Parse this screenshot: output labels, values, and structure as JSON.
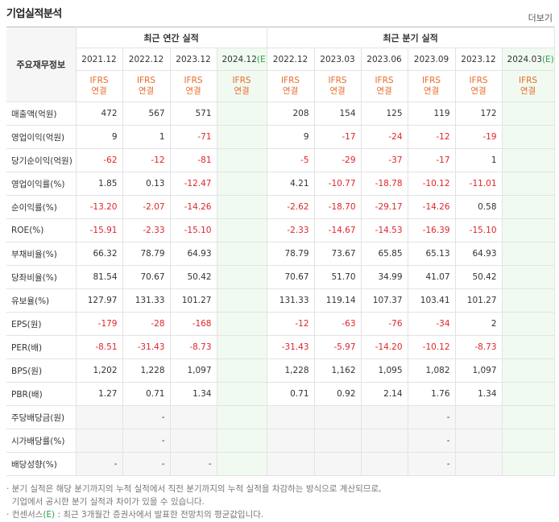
{
  "title": "기업실적분석",
  "more": "더보기",
  "headers": {
    "row_label": "주요재무정보",
    "annual_group": "최근 연간 실적",
    "quarter_group": "최근 분기 실적",
    "annual_periods": [
      "2021.12",
      "2022.12",
      "2023.12",
      "2024.12"
    ],
    "annual_est_suffix": "(E)",
    "quarter_periods": [
      "2022.12",
      "2023.03",
      "2023.06",
      "2023.09",
      "2023.12",
      "2024.03"
    ],
    "quarter_est_suffix": "(E)",
    "ifrs": "IFRS",
    "consolidated": "연결"
  },
  "rows": [
    {
      "label": "매출액(억원)",
      "values": [
        "472",
        "567",
        "571",
        "",
        "208",
        "154",
        "125",
        "119",
        "172",
        ""
      ]
    },
    {
      "label": "영업이익(억원)",
      "values": [
        "9",
        "1",
        "-71",
        "",
        "9",
        "-17",
        "-24",
        "-12",
        "-19",
        ""
      ]
    },
    {
      "label": "당기순이익(억원)",
      "values": [
        "-62",
        "-12",
        "-81",
        "",
        "-5",
        "-29",
        "-37",
        "-17",
        "1",
        ""
      ]
    },
    {
      "label": "영업이익률(%)",
      "values": [
        "1.85",
        "0.13",
        "-12.47",
        "",
        "4.21",
        "-10.77",
        "-18.78",
        "-10.12",
        "-11.01",
        ""
      ]
    },
    {
      "label": "순이익률(%)",
      "values": [
        "-13.20",
        "-2.07",
        "-14.26",
        "",
        "-2.62",
        "-18.70",
        "-29.17",
        "-14.26",
        "0.58",
        ""
      ]
    },
    {
      "label": "ROE(%)",
      "values": [
        "-15.91",
        "-2.33",
        "-15.10",
        "",
        "-2.33",
        "-14.67",
        "-14.53",
        "-16.39",
        "-15.10",
        ""
      ]
    },
    {
      "label": "부채비율(%)",
      "values": [
        "66.32",
        "78.79",
        "64.93",
        "",
        "78.79",
        "73.67",
        "65.85",
        "65.13",
        "64.93",
        ""
      ]
    },
    {
      "label": "당좌비율(%)",
      "values": [
        "81.54",
        "70.67",
        "50.42",
        "",
        "70.67",
        "51.70",
        "34.99",
        "41.07",
        "50.42",
        ""
      ]
    },
    {
      "label": "유보율(%)",
      "values": [
        "127.97",
        "131.33",
        "101.27",
        "",
        "131.33",
        "119.14",
        "107.37",
        "103.41",
        "101.27",
        ""
      ]
    },
    {
      "label": "EPS(원)",
      "values": [
        "-179",
        "-28",
        "-168",
        "",
        "-12",
        "-63",
        "-76",
        "-34",
        "2",
        ""
      ]
    },
    {
      "label": "PER(배)",
      "values": [
        "-8.51",
        "-31.43",
        "-8.73",
        "",
        "-31.43",
        "-5.97",
        "-14.20",
        "-10.12",
        "-8.73",
        ""
      ]
    },
    {
      "label": "BPS(원)",
      "values": [
        "1,202",
        "1,228",
        "1,097",
        "",
        "1,228",
        "1,162",
        "1,095",
        "1,082",
        "1,097",
        ""
      ]
    },
    {
      "label": "PBR(배)",
      "values": [
        "1.27",
        "0.71",
        "1.34",
        "",
        "0.71",
        "0.92",
        "2.14",
        "1.76",
        "1.34",
        ""
      ]
    },
    {
      "label": "주당배당금(원)",
      "values": [
        "",
        "-",
        "",
        "",
        "",
        "",
        "",
        "-",
        "",
        ""
      ],
      "gray": true
    },
    {
      "label": "시가배당률(%)",
      "values": [
        "",
        "-",
        "",
        "",
        "",
        "",
        "",
        "-",
        "",
        ""
      ],
      "gray": true
    },
    {
      "label": "배당성향(%)",
      "values": [
        "-",
        "-",
        "-",
        "",
        "",
        "",
        "",
        "-",
        "",
        ""
      ],
      "gray": true
    }
  ],
  "notes": [
    "· 분기 실적은 해당 분기까지의 누적 실적에서 직전 분기까지의 누적 실적을 차감하는 방식으로 계산되므로,",
    "  기업에서 공시한 분기 실적과 차이가 있을 수 있습니다.",
    "· 컨센서스(E) : 최근 3개월간 증권사에서 발표한 전망치의 평균값입니다."
  ],
  "notes_consensus_label": "컨센서스",
  "notes_consensus_e": "(E)",
  "notes_consensus_rest": " : 최근 3개월간 증권사에서 발표한 전망치의 평균값입니다."
}
